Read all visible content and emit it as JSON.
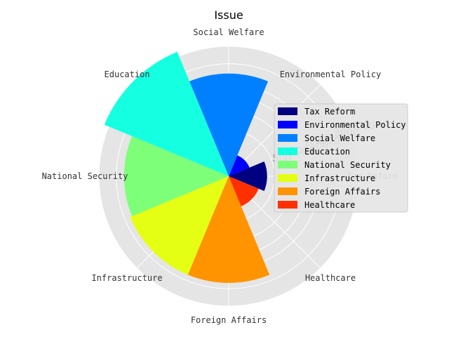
{
  "chart_data": {
    "type": "polar-bar",
    "title": "Issue",
    "categories": [
      "Tax Reform",
      "Environmental Policy",
      "Social Welfare",
      "Education",
      "National Security",
      "Infrastructure",
      "Foreign Affairs",
      "Healthcare"
    ],
    "values": [
      350,
      120,
      2500,
      4300,
      2600,
      2700,
      2700,
      250
    ],
    "colors": [
      "#000080",
      "#0000ff",
      "#0080ff",
      "#15ffe1",
      "#7dff7a",
      "#e4ff13",
      "#ff9400",
      "#ff3000"
    ],
    "rlim": [
      0,
      4000
    ],
    "rticks": [
      500,
      1000,
      1500,
      2000,
      3000,
      4000
    ],
    "rtick_labels": [
      "500",
      "1000",
      "1500",
      "2000",
      "3000",
      "4000"
    ],
    "grid": true,
    "legend": {
      "position": "right",
      "labels": [
        "Tax Reform",
        "Environmental Policy",
        "Social Welfare",
        "Education",
        "National Security",
        "Infrastructure",
        "Foreign Affairs",
        "Healthcare"
      ]
    }
  }
}
